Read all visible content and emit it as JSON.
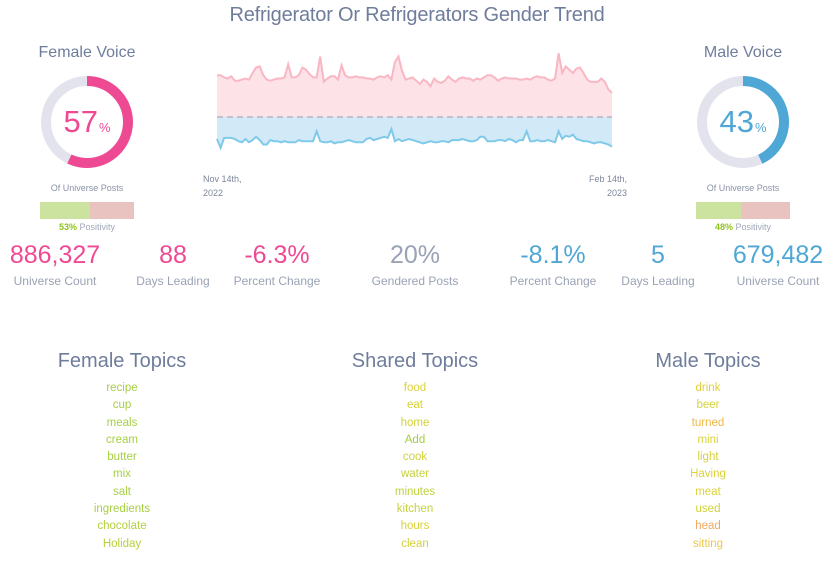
{
  "title": "Refrigerator Or Refrigerators Gender Trend",
  "female": {
    "title": "Female Voice",
    "percent": "57",
    "percent_sign": "%",
    "subtitle": "Of Universe Posts",
    "positivity_value": "53%",
    "positivity_label": " Positivity",
    "color": "#ee4a94"
  },
  "male": {
    "title": "Male Voice",
    "percent": "43",
    "percent_sign": "%",
    "subtitle": "Of Universe Posts",
    "positivity_value": "48%",
    "positivity_label": " Positivity",
    "color": "#4ea7d4"
  },
  "trend": {
    "start_date_line1": "Nov 14th,",
    "start_date_line2": "2022",
    "end_date_line1": "Feb 14th,",
    "end_date_line2": "2023"
  },
  "stats": [
    {
      "value": "886,327",
      "label": "Universe Count"
    },
    {
      "value": "88",
      "label": "Days Leading"
    },
    {
      "value": "-6.3%",
      "label": "Percent Change"
    },
    {
      "value": "20%",
      "label": "Gendered Posts"
    },
    {
      "value": "-8.1%",
      "label": "Percent Change"
    },
    {
      "value": "5",
      "label": "Days Leading"
    },
    {
      "value": "679,482",
      "label": "Universe Count"
    }
  ],
  "topics": {
    "female": {
      "title": "Female Topics",
      "items": [
        "recipe",
        "cup",
        "meals",
        "cream",
        "butter",
        "mix",
        "salt",
        "ingredients",
        "chocolate",
        "Holiday"
      ],
      "colors": [
        "#a7cf45",
        "#a7cf45",
        "#a7cf45",
        "#a7cf45",
        "#a7cf45",
        "#a7cf45",
        "#a7cf45",
        "#a7cf45",
        "#b3d03f",
        "#b8d03a"
      ]
    },
    "shared": {
      "title": "Shared Topics",
      "items": [
        "food",
        "eat",
        "home",
        "Add",
        "cook",
        "water",
        "minutes",
        "kitchen",
        "hours",
        "clean"
      ],
      "colors": [
        "#dcd23a",
        "#d6d23a",
        "#d3d23a",
        "#a3cd40",
        "#cfd23c",
        "#c6d23c",
        "#bfd23d",
        "#c6d23c",
        "#dcd23a",
        "#d0d23c"
      ]
    },
    "male": {
      "title": "Male Topics",
      "items": [
        "drink",
        "beer",
        "turned",
        "mini",
        "light",
        "Having",
        "meat",
        "used",
        "head",
        "sitting"
      ],
      "colors": [
        "#e0cf3a",
        "#d6d23a",
        "#f0b84a",
        "#dcd23a",
        "#d6d23a",
        "#dcd23a",
        "#dcd23a",
        "#cfd23c",
        "#f0a860",
        "#ecc84a"
      ]
    }
  },
  "chart_data": [
    {
      "type": "pie",
      "title": "Female Voice",
      "categories": [
        "Female",
        "Remainder"
      ],
      "values": [
        57,
        43
      ],
      "colors": [
        "#ee4a94",
        "#e3e3ee"
      ],
      "annotations": [
        "Of Universe Posts",
        "53% Positivity"
      ]
    },
    {
      "type": "area",
      "title": "Gender Trend",
      "x_start": "Nov 14th, 2022",
      "x_end": "Feb 14th, 2023",
      "baseline": "dashed center line",
      "series": [
        {
          "name": "Female (above baseline)",
          "color": "#f9b6c3",
          "fill": "#fde3e8",
          "values": [
            38,
            38,
            36,
            35,
            37,
            33,
            33,
            34,
            35,
            34,
            40,
            45,
            46,
            38,
            34,
            33,
            34,
            35,
            35,
            36,
            48,
            36,
            36,
            38,
            45,
            43,
            39,
            36,
            36,
            55,
            32,
            35,
            37,
            37,
            34,
            47,
            38,
            36,
            36,
            37,
            36,
            36,
            35,
            35,
            34,
            36,
            37,
            36,
            38,
            34,
            50,
            55,
            42,
            34,
            35,
            36,
            33,
            30,
            34,
            32,
            28,
            35,
            32,
            31,
            33,
            37,
            34,
            32,
            35,
            36,
            35,
            35,
            33,
            35,
            34,
            36,
            38,
            38,
            36,
            33,
            35,
            36,
            35,
            35,
            35,
            34,
            34,
            35,
            34,
            36,
            37,
            36,
            36,
            34,
            33,
            35,
            58,
            40,
            46,
            43,
            40,
            44,
            45,
            40,
            34,
            32,
            32,
            32,
            35,
            32,
            25,
            22
          ]
        },
        {
          "name": "Male (below baseline)",
          "color": "#7fc9ea",
          "fill": "#d2eaf7",
          "values": [
            20,
            28,
            19,
            19,
            19,
            20,
            22,
            23,
            20,
            23,
            21,
            18,
            21,
            25,
            25,
            21,
            22,
            22,
            23,
            22,
            23,
            23,
            23,
            21,
            22,
            22,
            22,
            22,
            13,
            22,
            23,
            23,
            22,
            24,
            23,
            23,
            22,
            21,
            22,
            23,
            23,
            23,
            20,
            19,
            21,
            20,
            19,
            18,
            19,
            11,
            22,
            20,
            22,
            21,
            20,
            21,
            22,
            23,
            24,
            23,
            22,
            23,
            23,
            22,
            22,
            23,
            21,
            21,
            21,
            20,
            21,
            22,
            22,
            21,
            18,
            18,
            22,
            22,
            22,
            21,
            21,
            22,
            20,
            21,
            23,
            21,
            21,
            13,
            22,
            22,
            21,
            22,
            22,
            21,
            22,
            23,
            13,
            20,
            17,
            18,
            16,
            20,
            21,
            22,
            22,
            23,
            24,
            23,
            23,
            24,
            25,
            27
          ]
        }
      ]
    },
    {
      "type": "pie",
      "title": "Male Voice",
      "categories": [
        "Male",
        "Remainder"
      ],
      "values": [
        43,
        57
      ],
      "colors": [
        "#4ea7d4",
        "#e3e3ee"
      ],
      "annotations": [
        "Of Universe Posts",
        "48% Positivity"
      ]
    }
  ]
}
